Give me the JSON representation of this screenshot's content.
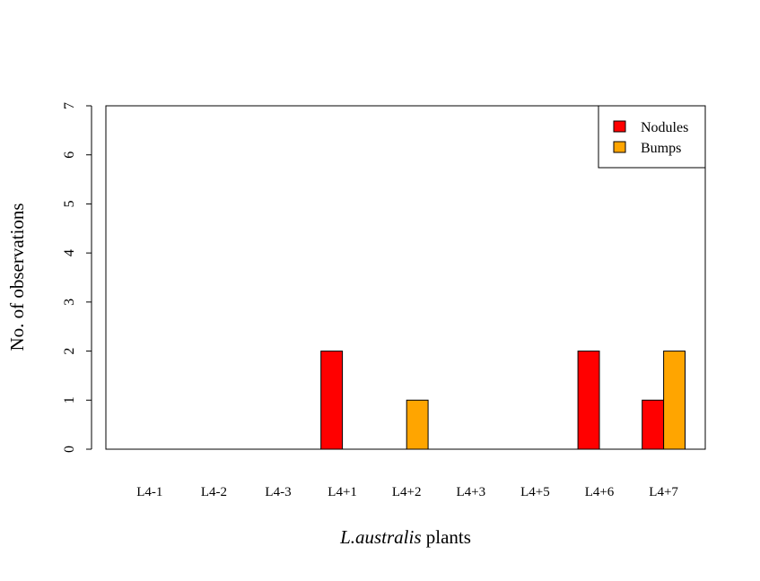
{
  "chart_data": {
    "type": "bar",
    "categories": [
      "L4-1",
      "L4-2",
      "L4-3",
      "L4+1",
      "L4+2",
      "L4+3",
      "L4+5",
      "L4+6",
      "L4+7"
    ],
    "series": [
      {
        "name": "Nodules",
        "color": "#ff0000",
        "values": [
          0,
          0,
          0,
          2,
          0,
          0,
          0,
          2,
          1
        ]
      },
      {
        "name": "Bumps",
        "color": "#ffa500",
        "values": [
          0,
          0,
          0,
          0,
          1,
          0,
          0,
          0,
          2
        ]
      }
    ],
    "xlabel_italic": "L.australis",
    "xlabel_rest": " plants",
    "ylabel": "No. of observations",
    "ylim": [
      0,
      7
    ],
    "yticks": [
      0,
      1,
      2,
      3,
      4,
      5,
      6,
      7
    ],
    "grid": false,
    "legend_position": "top-right"
  }
}
